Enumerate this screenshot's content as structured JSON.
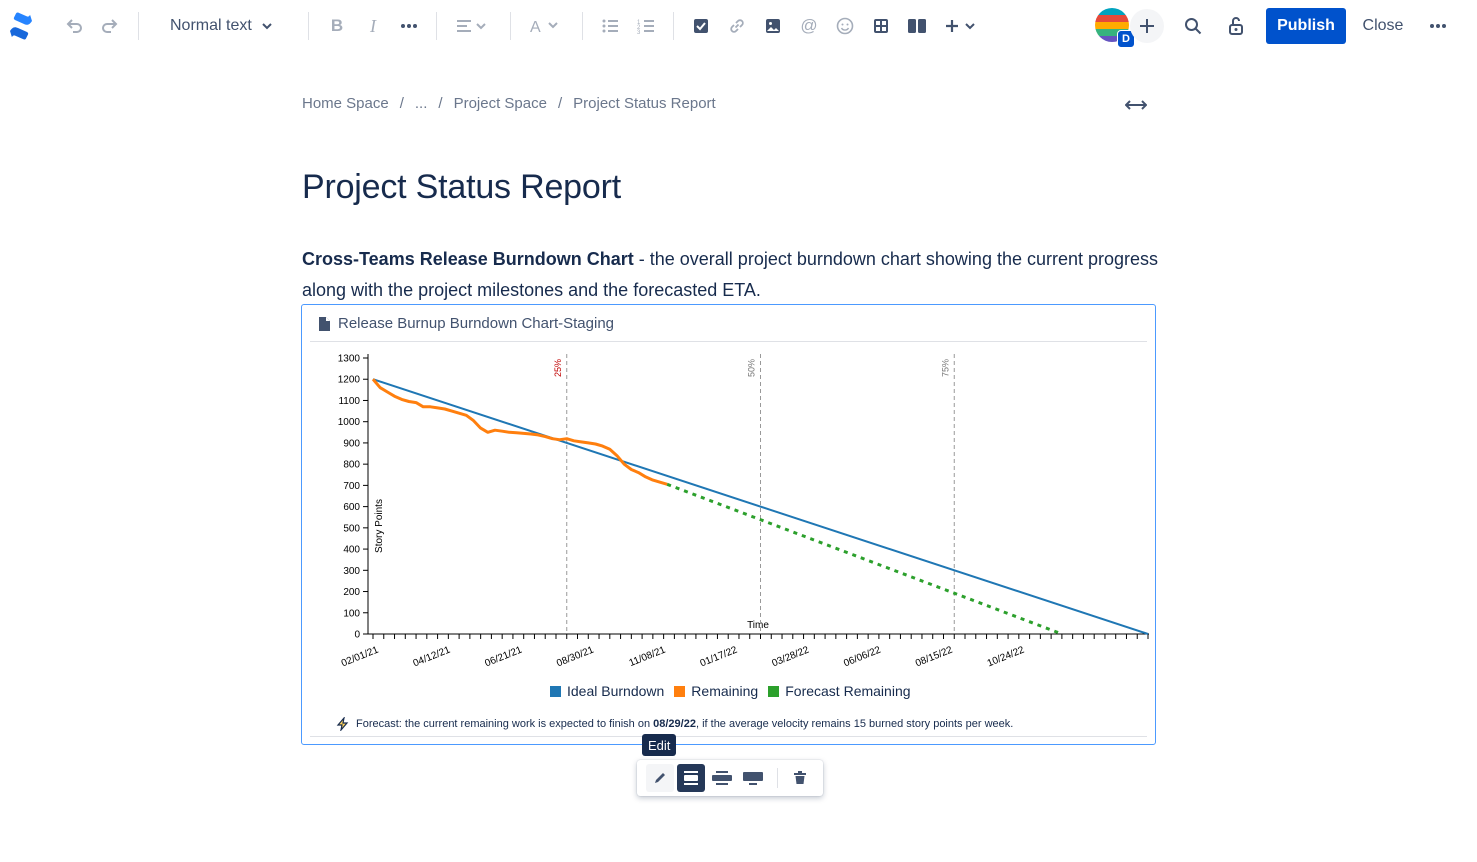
{
  "toolbar": {
    "text_style": "Normal text",
    "publish_label": "Publish",
    "close_label": "Close",
    "avatar_badge": "D",
    "icons": [
      "confluence-logo",
      "undo",
      "redo",
      "chevron-down",
      "bold",
      "italic",
      "more-formatting",
      "align",
      "text-color",
      "bullet-list",
      "numbered-list",
      "task",
      "link",
      "image",
      "mention",
      "emoji",
      "table",
      "layouts",
      "insert-more",
      "invite",
      "search",
      "restrictions",
      "more-actions"
    ]
  },
  "breadcrumb": {
    "items": [
      "Home Space",
      "...",
      "Project Space",
      "Project Status Report"
    ],
    "separator": "/"
  },
  "page": {
    "title": "Project Status Report",
    "intro_bold": "Cross-Teams Release Burndown Chart",
    "intro_text": " - the overall project burndown chart showing the current progress along with the project milestones and the forecasted ETA."
  },
  "macro": {
    "title": "Release Burnup Burndown Chart-Staging",
    "forecast_prefix": "Forecast: the current remaining work is expected to finish on ",
    "forecast_date": "08/29/22",
    "forecast_suffix": ", if the average velocity remains 15 burned story points per week."
  },
  "chart_data": {
    "type": "line",
    "ylabel": "Story Points",
    "xlabel": "Time",
    "ylim": [
      0,
      1300
    ],
    "yticks": [
      0,
      100,
      200,
      300,
      400,
      500,
      600,
      700,
      800,
      900,
      1000,
      1100,
      1200,
      1300
    ],
    "x_tick_labels": [
      "02/01/21",
      "04/12/21",
      "06/21/21",
      "08/30/21",
      "11/08/21",
      "01/17/22",
      "03/28/22",
      "06/06/22",
      "08/15/22",
      "10/24/22"
    ],
    "milestones": [
      {
        "label": "25%",
        "week": 27,
        "color": "#c00000"
      },
      {
        "label": "50%",
        "week": 54,
        "color": "#777777"
      },
      {
        "label": "75%",
        "week": 81,
        "color": "#777777"
      }
    ],
    "series": [
      {
        "name": "Ideal Burndown",
        "color": "#1f77b4",
        "style": "solid",
        "points": [
          [
            0,
            1200
          ],
          [
            108,
            0
          ]
        ]
      },
      {
        "name": "Remaining",
        "color": "#ff7f0e",
        "style": "solid",
        "points": [
          [
            0,
            1200
          ],
          [
            1,
            1160
          ],
          [
            2,
            1140
          ],
          [
            3,
            1120
          ],
          [
            4,
            1105
          ],
          [
            5,
            1095
          ],
          [
            6,
            1090
          ],
          [
            7,
            1070
          ],
          [
            8,
            1070
          ],
          [
            9,
            1065
          ],
          [
            10,
            1060
          ],
          [
            11,
            1050
          ],
          [
            12,
            1040
          ],
          [
            13,
            1030
          ],
          [
            14,
            1005
          ],
          [
            15,
            970
          ],
          [
            16,
            950
          ],
          [
            17,
            960
          ],
          [
            18,
            955
          ],
          [
            19,
            950
          ],
          [
            20,
            948
          ],
          [
            21,
            945
          ],
          [
            22,
            942
          ],
          [
            23,
            938
          ],
          [
            24,
            930
          ],
          [
            25,
            920
          ],
          [
            26,
            915
          ],
          [
            27,
            920
          ],
          [
            28,
            910
          ],
          [
            29,
            905
          ],
          [
            30,
            900
          ],
          [
            31,
            895
          ],
          [
            32,
            885
          ],
          [
            33,
            870
          ],
          [
            34,
            840
          ],
          [
            35,
            800
          ],
          [
            36,
            775
          ],
          [
            37,
            760
          ],
          [
            38,
            740
          ],
          [
            39,
            725
          ],
          [
            40,
            715
          ],
          [
            41,
            705
          ]
        ]
      },
      {
        "name": "Forecast Remaining",
        "color": "#2ca02c",
        "style": "dashed",
        "points": [
          [
            41,
            705
          ],
          [
            96,
            0
          ]
        ]
      }
    ]
  },
  "float_toolbar": {
    "tooltip": "Edit",
    "buttons": [
      "edit-icon",
      "layout-center-icon",
      "layout-wide-icon",
      "layout-full-width-icon",
      "delete-icon"
    ]
  }
}
